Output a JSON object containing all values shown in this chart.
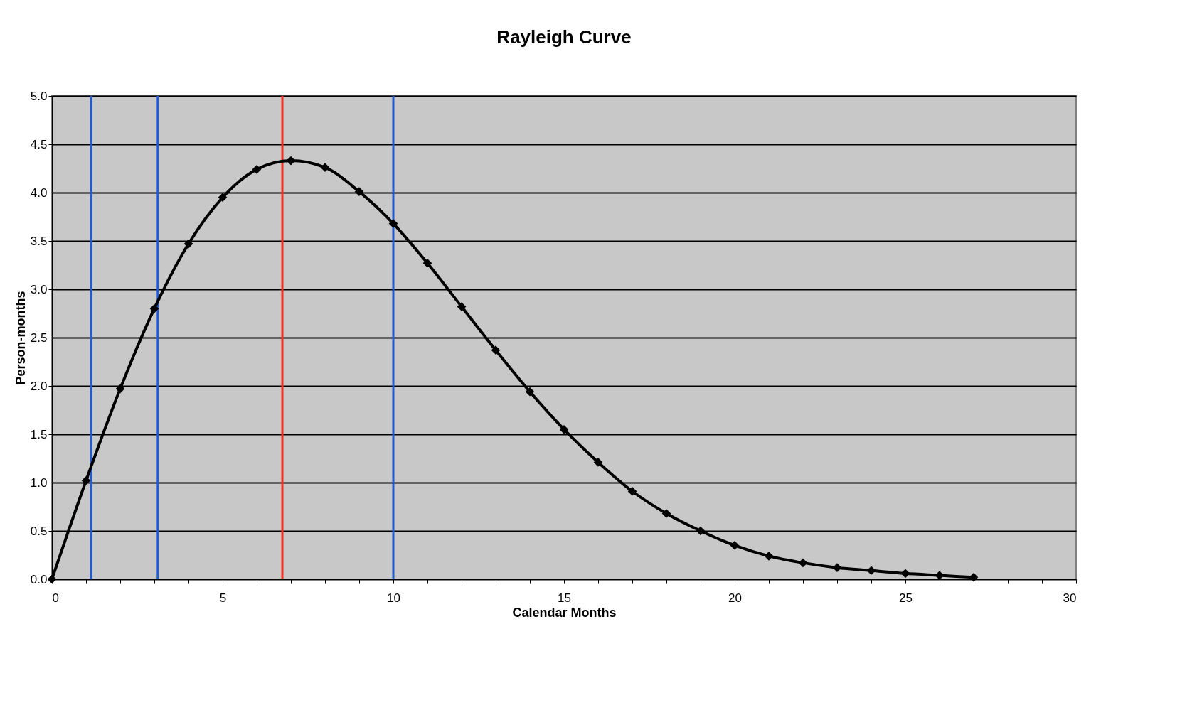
{
  "chart_data": {
    "type": "line",
    "title": "Rayleigh Curve",
    "xlabel": "Calendar Months",
    "ylabel": "Person-months",
    "x": [
      0,
      1,
      2,
      3,
      4,
      5,
      6,
      7,
      8,
      9,
      10,
      11,
      12,
      13,
      14,
      15,
      16,
      17,
      18,
      19,
      20,
      21,
      22,
      23,
      24,
      25,
      26,
      27
    ],
    "series": [
      {
        "color": "#000000",
        "values": [
          0,
          1.02,
          1.97,
          2.8,
          3.47,
          3.95,
          4.24,
          4.33,
          4.26,
          4.01,
          3.68,
          3.27,
          2.82,
          2.37,
          1.94,
          1.55,
          1.21,
          0.91,
          0.68,
          0.5,
          0.35,
          0.24,
          0.17,
          0.12,
          0.09,
          0.06,
          0.04,
          0.02
        ]
      }
    ],
    "xlim": [
      0,
      30
    ],
    "xticks": [
      0,
      {
        "value": 1,
        "label": null
      },
      {
        "value": 2,
        "label": null
      },
      {
        "value": 3,
        "label": null
      },
      {
        "value": 4,
        "label": null
      },
      5,
      {
        "value": 6,
        "label": null
      },
      {
        "value": 7,
        "label": null
      },
      {
        "value": 8,
        "label": null
      },
      {
        "value": 9,
        "label": null
      },
      10,
      {
        "value": 11,
        "label": null
      },
      {
        "value": 12,
        "label": null
      },
      {
        "value": 13,
        "label": null
      },
      {
        "value": 14,
        "label": null
      },
      15,
      {
        "value": 16,
        "label": null
      },
      {
        "value": 17,
        "label": null
      },
      {
        "value": 18,
        "label": null
      },
      {
        "value": 19,
        "label": null
      },
      20,
      {
        "value": 21,
        "label": null
      },
      {
        "value": 22,
        "label": null
      },
      {
        "value": 23,
        "label": null
      },
      {
        "value": 24,
        "label": null
      },
      25,
      {
        "value": 26,
        "label": null
      },
      {
        "value": 27,
        "label": null
      },
      {
        "value": 28,
        "label": null
      },
      {
        "value": 29,
        "label": null
      },
      30
    ],
    "ylim": [
      0,
      5
    ],
    "yticks": [
      {
        "value": 0,
        "label": "0.0"
      },
      0.5,
      {
        "value": 1,
        "label": "1.0"
      },
      1.5,
      {
        "value": 2,
        "label": "2.0"
      },
      2.5,
      {
        "value": 3,
        "label": "3.0"
      },
      3.5,
      {
        "value": 4,
        "label": "4.0"
      },
      4.5,
      {
        "value": 5,
        "label": "5.0"
      }
    ],
    "ref_lines": [
      {
        "axis": "x",
        "value": 1.15,
        "color": "#1f5bd6"
      },
      {
        "axis": "x",
        "value": 3.1,
        "color": "#1f5bd6"
      },
      {
        "axis": "x",
        "value": 6.75,
        "color": "#ff2a1a"
      },
      {
        "axis": "x",
        "value": 10,
        "color": "#1f5bd6"
      }
    ],
    "grid": "y",
    "marker": "diamond",
    "line_style": "solid"
  }
}
